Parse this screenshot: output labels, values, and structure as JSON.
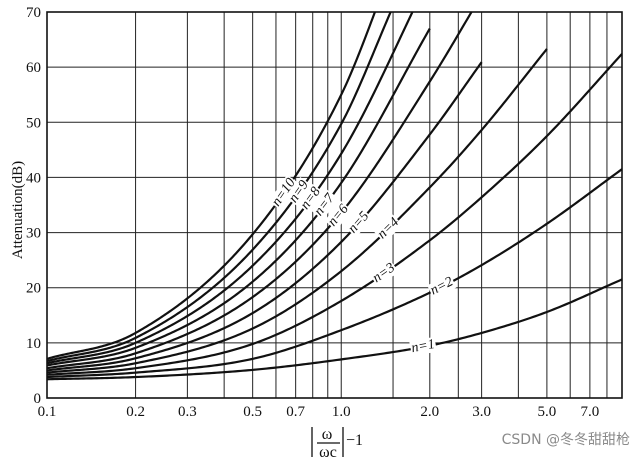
{
  "chart_data": {
    "type": "line",
    "title": "",
    "ylabel": "Attenuation(dB)",
    "xlabel": {
      "numerator": "ω",
      "denominator": "ωc",
      "suffix": "−1"
    },
    "x_scale": "log",
    "xlim": [
      0.1,
      9.0
    ],
    "ylim": [
      0,
      70
    ],
    "grid": true,
    "x_ticks": [
      0.1,
      0.2,
      0.3,
      0.5,
      0.7,
      1.0,
      2.0,
      3.0,
      5.0,
      7.0
    ],
    "x_tick_labels": [
      "0.1",
      "0.2",
      "0.3",
      "0.5",
      "0.7",
      "1.0",
      "2.0",
      "3.0",
      "5.0",
      "7.0"
    ],
    "x_minor_grid": [
      0.4,
      0.6,
      0.8,
      0.9,
      1.5,
      2.5,
      4.0,
      6.0,
      8.0,
      9.0
    ],
    "y_ticks": [
      0,
      10,
      20,
      30,
      40,
      50,
      60,
      70
    ],
    "y_tick_labels": [
      "0",
      "10",
      "20",
      "30",
      "40",
      "50",
      "60",
      "70"
    ],
    "series": [
      {
        "name": "n=1",
        "x": [
          0.1,
          0.2,
          0.5,
          1.0,
          2.0,
          3.0,
          5.0,
          9.0
        ],
        "y": [
          3.4,
          3.8,
          5.1,
          7.0,
          9.5,
          11.8,
          15.6,
          21.5
        ]
      },
      {
        "name": "n=2",
        "x": [
          0.1,
          0.2,
          0.5,
          1.0,
          2.0,
          3.0,
          5.0,
          9.0
        ],
        "y": [
          3.8,
          4.6,
          7.1,
          12.3,
          19.1,
          24.1,
          31.6,
          41.5
        ]
      },
      {
        "name": "n=3",
        "x": [
          0.1,
          0.2,
          0.5,
          1.0,
          2.0,
          3.0,
          5.0,
          9.0
        ],
        "y": [
          4.2,
          5.4,
          9.8,
          17.6,
          28.6,
          36.4,
          47.5,
          62.4
        ]
      },
      {
        "name": "n=4",
        "x": [
          0.1,
          0.2,
          0.5,
          1.0,
          2.0,
          3.0,
          5.0
        ],
        "y": [
          4.6,
          6.3,
          12.6,
          23.0,
          38.2,
          48.6,
          63.3
        ]
      },
      {
        "name": "n=5",
        "x": [
          0.1,
          0.2,
          0.5,
          1.0,
          2.0,
          3.0
        ],
        "y": [
          5.0,
          7.2,
          15.4,
          28.3,
          47.8,
          60.9
        ]
      },
      {
        "name": "n=6",
        "x": [
          0.1,
          0.2,
          0.5,
          1.0,
          2.0,
          3.0
        ],
        "y": [
          5.4,
          8.1,
          18.3,
          33.6,
          57.4,
          73.1
        ]
      },
      {
        "name": "n=7",
        "x": [
          0.1,
          0.2,
          0.5,
          1.0,
          2.0
        ],
        "y": [
          5.9,
          9.1,
          21.1,
          39.0,
          67.0
        ]
      },
      {
        "name": "n=8",
        "x": [
          0.1,
          0.2,
          0.5,
          1.0,
          2.0
        ],
        "y": [
          6.3,
          10.0,
          24.0,
          44.3,
          76.5
        ]
      },
      {
        "name": "n=9",
        "x": [
          0.1,
          0.2,
          0.5,
          1.0,
          1.5
        ],
        "y": [
          6.7,
          10.9,
          26.9,
          49.7,
          71.0
        ]
      },
      {
        "name": "n=10",
        "x": [
          0.1,
          0.2,
          0.5,
          1.0,
          1.5
        ],
        "y": [
          7.1,
          11.8,
          29.7,
          55.0,
          78.6
        ]
      }
    ],
    "annotations": [
      {
        "series": "n=1",
        "text": "n=1",
        "at_x": 1.9
      },
      {
        "series": "n=2",
        "text": "n=2",
        "at_x": 2.2
      },
      {
        "series": "n=3",
        "text": "n=3",
        "at_x": 1.4
      },
      {
        "series": "n=4",
        "text": "n=4",
        "at_x": 1.45
      },
      {
        "series": "n=5",
        "text": "n=5",
        "at_x": 1.15
      },
      {
        "series": "n=6",
        "text": "n=6",
        "at_x": 0.98
      },
      {
        "series": "n=7",
        "text": "n=7",
        "at_x": 0.88
      },
      {
        "series": "n=8",
        "text": "n=8",
        "at_x": 0.79
      },
      {
        "series": "n=9",
        "text": "n=9",
        "at_x": 0.72
      },
      {
        "series": "n=10",
        "text": "n=10",
        "at_x": 0.64
      }
    ]
  },
  "watermark": "CSDN @冬冬甜甜枪"
}
